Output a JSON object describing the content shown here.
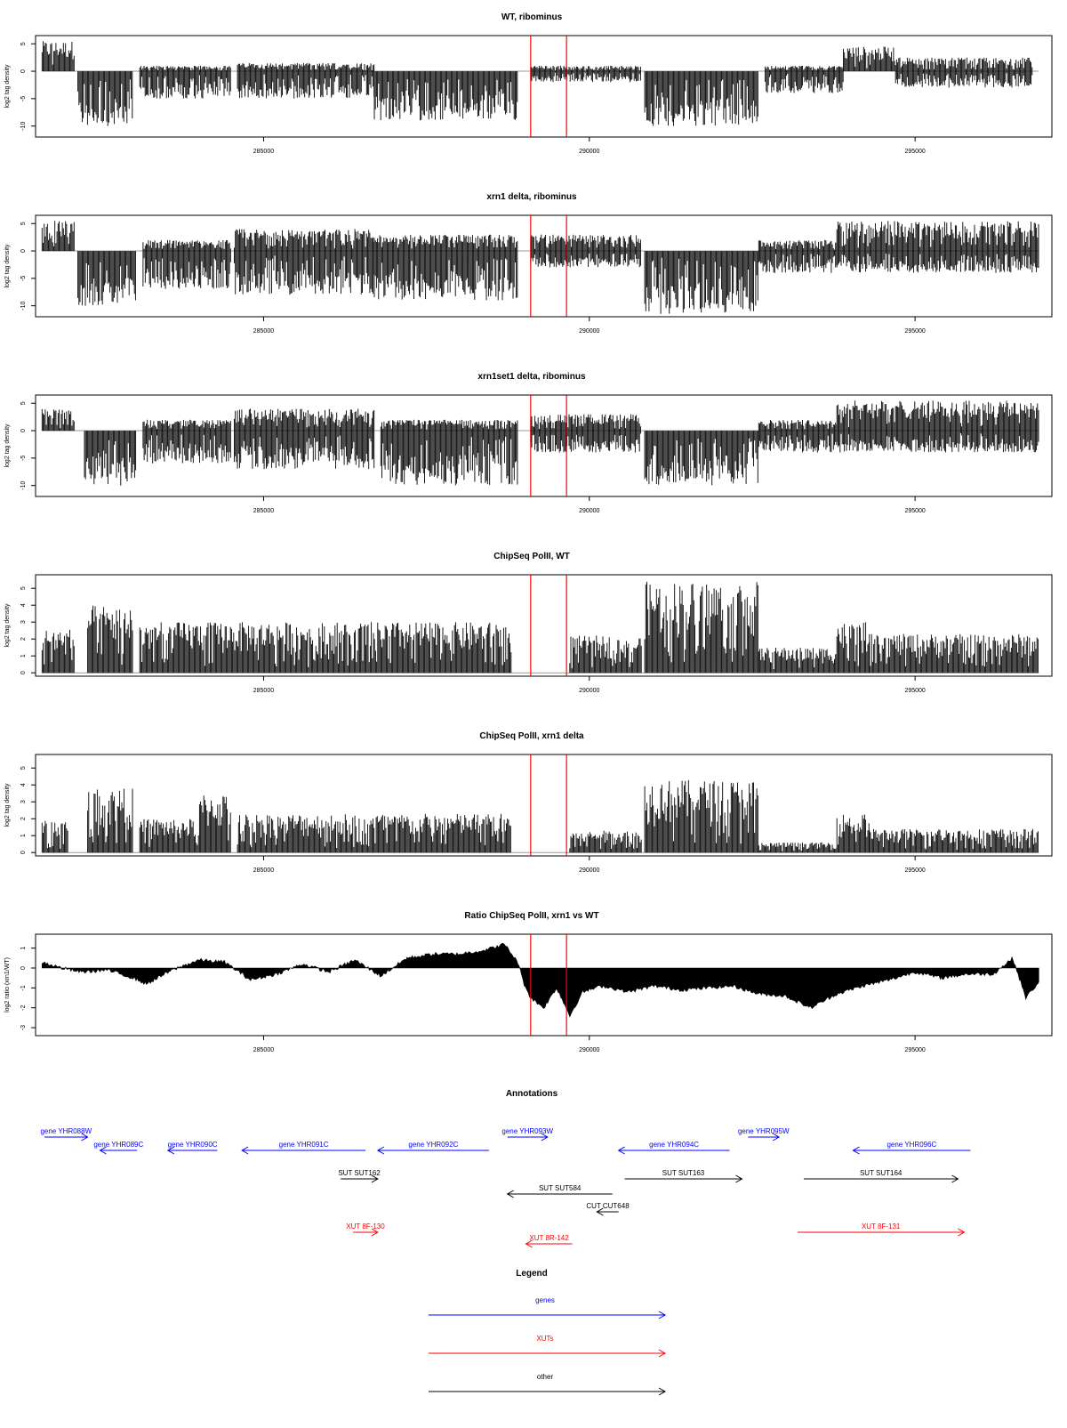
{
  "figure": {
    "x_tick_labels": [
      "285000",
      "290000",
      "295000"
    ]
  },
  "chart_data": [
    {
      "type": "bar",
      "title": "WT, ribominus",
      "ylabel": "log2 tag density",
      "xlim": [
        281500,
        297100
      ],
      "ylim": [
        -12,
        6.5
      ],
      "y_ticks": [
        5,
        0,
        -5,
        -10
      ],
      "x_ticks": [
        285000,
        290000,
        295000
      ],
      "grid": false,
      "marker_lines_x": [
        289100,
        289650
      ],
      "marker_color": "#ff0000",
      "series": [
        {
          "x_start": 281600,
          "x_end": 282100,
          "y_min": 0,
          "y_max": 5.5
        },
        {
          "x_start": 282150,
          "x_end": 283000,
          "y_min": -10,
          "y_max": 0
        },
        {
          "x_start": 283100,
          "x_end": 284500,
          "y_min": -5,
          "y_max": 1
        },
        {
          "x_start": 284600,
          "x_end": 286700,
          "y_min": -5,
          "y_max": 1.5
        },
        {
          "x_start": 286700,
          "x_end": 288900,
          "y_min": -9,
          "y_max": 0
        },
        {
          "x_start": 289100,
          "x_end": 290800,
          "y_min": -2,
          "y_max": 1
        },
        {
          "x_start": 290850,
          "x_end": 292600,
          "y_min": -10,
          "y_max": 0
        },
        {
          "x_start": 292700,
          "x_end": 293900,
          "y_min": -4,
          "y_max": 1
        },
        {
          "x_start": 293900,
          "x_end": 294700,
          "y_min": 0,
          "y_max": 4.5
        },
        {
          "x_start": 294700,
          "x_end": 296800,
          "y_min": -3,
          "y_max": 2.5
        }
      ]
    },
    {
      "type": "bar",
      "title": "xrn1 delta, ribominus",
      "ylabel": "log2 tag density",
      "xlim": [
        281500,
        297100
      ],
      "ylim": [
        -12,
        6.5
      ],
      "y_ticks": [
        5,
        0,
        -5,
        -10
      ],
      "x_ticks": [
        285000,
        290000,
        295000
      ],
      "grid": false,
      "marker_lines_x": [
        289100,
        289650
      ],
      "marker_color": "#ff0000",
      "series": [
        {
          "x_start": 281600,
          "x_end": 282100,
          "y_min": 0,
          "y_max": 5.5
        },
        {
          "x_start": 282150,
          "x_end": 283050,
          "y_min": -10,
          "y_max": 0
        },
        {
          "x_start": 283150,
          "x_end": 284500,
          "y_min": -7,
          "y_max": 2
        },
        {
          "x_start": 284550,
          "x_end": 286700,
          "y_min": -8,
          "y_max": 4
        },
        {
          "x_start": 286700,
          "x_end": 288900,
          "y_min": -9,
          "y_max": 3
        },
        {
          "x_start": 289100,
          "x_end": 290800,
          "y_min": -3,
          "y_max": 3
        },
        {
          "x_start": 290850,
          "x_end": 292600,
          "y_min": -11.5,
          "y_max": 0
        },
        {
          "x_start": 292600,
          "x_end": 293800,
          "y_min": -4,
          "y_max": 2
        },
        {
          "x_start": 293800,
          "x_end": 296900,
          "y_min": -4,
          "y_max": 5.5
        }
      ]
    },
    {
      "type": "bar",
      "title": "xrn1set1 delta, ribominus",
      "ylabel": "log2 tag density",
      "xlim": [
        281500,
        297100
      ],
      "ylim": [
        -12,
        6.5
      ],
      "y_ticks": [
        5,
        0,
        -5,
        -10
      ],
      "x_ticks": [
        285000,
        290000,
        295000
      ],
      "grid": false,
      "marker_lines_x": [
        289100,
        289650
      ],
      "marker_color": "#ff0000",
      "series": [
        {
          "x_start": 281600,
          "x_end": 282100,
          "y_min": 0,
          "y_max": 4
        },
        {
          "x_start": 282250,
          "x_end": 283050,
          "y_min": -10,
          "y_max": 0
        },
        {
          "x_start": 283150,
          "x_end": 284500,
          "y_min": -6,
          "y_max": 2
        },
        {
          "x_start": 284550,
          "x_end": 286700,
          "y_min": -7,
          "y_max": 4
        },
        {
          "x_start": 286800,
          "x_end": 288900,
          "y_min": -10,
          "y_max": 2
        },
        {
          "x_start": 289100,
          "x_end": 290800,
          "y_min": -4,
          "y_max": 3
        },
        {
          "x_start": 290850,
          "x_end": 292600,
          "y_min": -10,
          "y_max": 0
        },
        {
          "x_start": 292600,
          "x_end": 293800,
          "y_min": -4,
          "y_max": 2
        },
        {
          "x_start": 293800,
          "x_end": 296900,
          "y_min": -4,
          "y_max": 5.5
        }
      ]
    },
    {
      "type": "bar",
      "title": "ChipSeq PolII, WT",
      "ylabel": "log2 tag density",
      "xlim": [
        281500,
        297100
      ],
      "ylim": [
        -0.2,
        5.8
      ],
      "y_ticks": [
        0,
        1,
        2,
        3,
        4,
        5
      ],
      "x_ticks": [
        285000,
        290000,
        295000
      ],
      "grid": false,
      "marker_lines_x": [
        289100,
        289650
      ],
      "marker_color": "#ff0000",
      "series": [
        {
          "x_start": 281600,
          "x_end": 282100,
          "y_min": 0,
          "y_max": 2.6
        },
        {
          "x_start": 282300,
          "x_end": 283000,
          "y_min": 0,
          "y_max": 4
        },
        {
          "x_start": 283100,
          "x_end": 288800,
          "y_min": 0,
          "y_max": 3
        },
        {
          "x_start": 289700,
          "x_end": 290800,
          "y_min": 0,
          "y_max": 2.2
        },
        {
          "x_start": 290850,
          "x_end": 292600,
          "y_min": 0,
          "y_max": 5.4
        },
        {
          "x_start": 292600,
          "x_end": 293800,
          "y_min": 0,
          "y_max": 1.5
        },
        {
          "x_start": 293800,
          "x_end": 294300,
          "y_min": 0,
          "y_max": 3
        },
        {
          "x_start": 294300,
          "x_end": 296900,
          "y_min": 0,
          "y_max": 2.3
        }
      ]
    },
    {
      "type": "bar",
      "title": "ChipSeq PolII, xrn1 delta",
      "ylabel": "log2 tag density",
      "xlim": [
        281500,
        297100
      ],
      "ylim": [
        -0.2,
        5.8
      ],
      "y_ticks": [
        0,
        1,
        2,
        3,
        4,
        5
      ],
      "x_ticks": [
        285000,
        290000,
        295000
      ],
      "grid": false,
      "marker_lines_x": [
        289100,
        289650
      ],
      "marker_color": "#ff0000",
      "series": [
        {
          "x_start": 281600,
          "x_end": 282000,
          "y_min": 0,
          "y_max": 1.9
        },
        {
          "x_start": 282300,
          "x_end": 283000,
          "y_min": 0,
          "y_max": 3.8
        },
        {
          "x_start": 283100,
          "x_end": 284000,
          "y_min": 0,
          "y_max": 2
        },
        {
          "x_start": 284000,
          "x_end": 284500,
          "y_min": 0,
          "y_max": 3.5
        },
        {
          "x_start": 284600,
          "x_end": 288800,
          "y_min": 0,
          "y_max": 2.3
        },
        {
          "x_start": 289700,
          "x_end": 290800,
          "y_min": 0,
          "y_max": 1.3
        },
        {
          "x_start": 290850,
          "x_end": 292600,
          "y_min": 0,
          "y_max": 4.3
        },
        {
          "x_start": 292600,
          "x_end": 293800,
          "y_min": 0,
          "y_max": 0.6
        },
        {
          "x_start": 293800,
          "x_end": 294300,
          "y_min": 0,
          "y_max": 2.3
        },
        {
          "x_start": 294300,
          "x_end": 296900,
          "y_min": 0,
          "y_max": 1.4
        }
      ]
    },
    {
      "type": "area",
      "title": "Ratio ChipSeq PolII, xrn1 vs WT",
      "ylabel": "log2 ratio (xrn1/WT)",
      "xlim": [
        281500,
        297100
      ],
      "ylim": [
        -3.4,
        1.7
      ],
      "y_ticks": [
        1,
        0,
        -1,
        -2,
        -3
      ],
      "x_ticks": [
        285000,
        290000,
        295000
      ],
      "grid": false,
      "marker_lines_x": [
        289100,
        289650
      ],
      "marker_color": "#ff0000",
      "series": [
        {
          "name": "",
          "x": [
            281600,
            281900,
            282200,
            282600,
            283000,
            283200,
            283600,
            284000,
            284400,
            284800,
            285200,
            285600,
            286000,
            286400,
            286800,
            287200,
            287600,
            288000,
            288400,
            288700,
            288900,
            289000,
            289100,
            289300,
            289500,
            289700,
            289900,
            290200,
            290600,
            291000,
            291400,
            291800,
            292200,
            292600,
            293000,
            293400,
            293800,
            294200,
            294600,
            295000,
            295400,
            295800,
            296200,
            296500,
            296700,
            296900
          ],
          "y": [
            0.3,
            0.0,
            -0.2,
            -0.1,
            -0.5,
            -0.8,
            -0.1,
            0.4,
            0.3,
            -0.6,
            -0.3,
            0.2,
            -0.2,
            0.4,
            -0.4,
            0.5,
            0.7,
            0.7,
            0.9,
            1.2,
            0.3,
            -0.8,
            -1.5,
            -2.0,
            -1.0,
            -2.4,
            -1.2,
            -0.9,
            -1.2,
            -0.9,
            -1.1,
            -1.0,
            -0.9,
            -1.3,
            -1.4,
            -2.0,
            -1.3,
            -0.9,
            -0.6,
            -0.2,
            -0.5,
            -0.3,
            -0.3,
            0.5,
            -1.5,
            -0.7
          ]
        }
      ]
    }
  ],
  "annotations": {
    "title": "Annotations",
    "items": [
      {
        "label": "gene YHR088W",
        "type": "gene",
        "strand": "+",
        "start": 281500,
        "end": 282200,
        "row": 0
      },
      {
        "label": "gene YHR089C",
        "type": "gene",
        "strand": "-",
        "start": 282400,
        "end": 283000,
        "row": 1
      },
      {
        "label": "gene YHR090C",
        "type": "gene",
        "strand": "-",
        "start": 283500,
        "end": 284300,
        "row": 1
      },
      {
        "label": "gene YHR091C",
        "type": "gene",
        "strand": "-",
        "start": 284700,
        "end": 286700,
        "row": 1
      },
      {
        "label": "gene YHR092C",
        "type": "gene",
        "strand": "-",
        "start": 286900,
        "end": 288700,
        "row": 1
      },
      {
        "label": "gene YHR093W",
        "type": "gene",
        "strand": "+",
        "start": 289000,
        "end": 289650,
        "row": 0
      },
      {
        "label": "gene YHR094C",
        "type": "gene",
        "strand": "-",
        "start": 290800,
        "end": 292600,
        "row": 1
      },
      {
        "label": "gene YHR095W",
        "type": "gene",
        "strand": "+",
        "start": 292900,
        "end": 293400,
        "row": 0
      },
      {
        "label": "gene YHR096C",
        "type": "gene",
        "strand": "-",
        "start": 294600,
        "end": 296500,
        "row": 1
      },
      {
        "label": "SUT SUT162",
        "type": "other",
        "strand": "+",
        "start": 286300,
        "end": 286900,
        "row": 2
      },
      {
        "label": "SUT SUT584",
        "type": "other",
        "strand": "-",
        "start": 289000,
        "end": 290700,
        "row": 3
      },
      {
        "label": "SUT SUT163",
        "type": "other",
        "strand": "+",
        "start": 290900,
        "end": 292800,
        "row": 2
      },
      {
        "label": "SUT SUT164",
        "type": "other",
        "strand": "+",
        "start": 293800,
        "end": 296300,
        "row": 2
      },
      {
        "label": "CUT CUT648",
        "type": "other",
        "strand": "-",
        "start": 290450,
        "end": 290800,
        "row": 4
      },
      {
        "label": "XUT 8F-130",
        "type": "xut",
        "strand": "+",
        "start": 286500,
        "end": 286900,
        "row": 5
      },
      {
        "label": "XUT 8R-142",
        "type": "xut",
        "strand": "-",
        "start": 289300,
        "end": 290050,
        "row": 6
      },
      {
        "label": "XUT 8F-131",
        "type": "xut",
        "strand": "+",
        "start": 293700,
        "end": 296400,
        "row": 5
      }
    ]
  },
  "legend": {
    "title": "Legend",
    "items": [
      {
        "label": "genes",
        "color": "#0000ff"
      },
      {
        "label": "XUTs",
        "color": "#ff0000"
      },
      {
        "label": "other",
        "color": "#000000"
      }
    ]
  },
  "colors": {
    "gene": "#0000ff",
    "xut": "#ff0000",
    "other": "#000000",
    "marker": "#ff0000"
  }
}
